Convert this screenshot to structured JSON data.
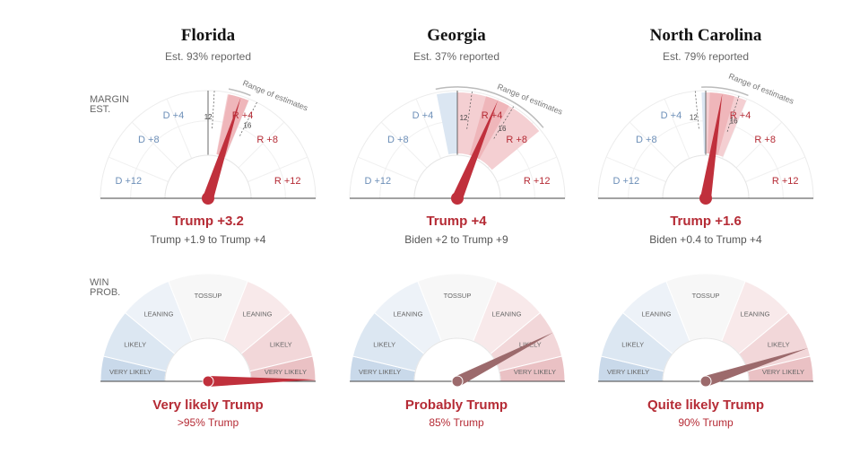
{
  "labels": {
    "margin_line1": "MARGIN",
    "margin_line2": "EST.",
    "win_line1": "WIN",
    "win_line2": "PROB."
  },
  "colors": {
    "red": "#b52b35",
    "blue": "#6d8fb8",
    "needle_red": "#c0303c",
    "needle_prob_gray": "#9c6a6c"
  },
  "states": [
    {
      "name": "Florida",
      "reported": "Est. 93% reported",
      "margin_headline": "Trump +3.2",
      "margin_range_text": "Trump +1.9 to Trump +4",
      "prob_headline": "Very likely Trump",
      "prob_text": ">95% Trump",
      "range_label": "Range of estimates",
      "tick_labels": {
        "t12": "12",
        "t16": "16"
      }
    },
    {
      "name": "Georgia",
      "reported": "Est. 37% reported",
      "margin_headline": "Trump +4",
      "margin_range_text": "Biden +2 to Trump +9",
      "prob_headline": "Probably Trump",
      "prob_text": "85% Trump",
      "range_label": "Range of estimates",
      "tick_labels": {
        "t12": "12",
        "t16": "16"
      }
    },
    {
      "name": "North Carolina",
      "reported": "Est. 79% reported",
      "margin_headline": "Trump +1.6",
      "margin_range_text": "Biden +0.4 to Trump +4",
      "prob_headline": "Quite likely Trump",
      "prob_text": "90% Trump",
      "range_label": "Range of estimates",
      "tick_labels": {
        "t12": "12",
        "t16": "16"
      }
    }
  ],
  "chart_data": [
    {
      "type": "gauge",
      "title": "Florida margin estimate",
      "scale": [
        -16,
        16
      ],
      "tick_labels": [
        "D +12",
        "D +8",
        "D +4",
        "R +4",
        "R +8",
        "R +12"
      ],
      "needle_value": 3.2,
      "range": [
        1.9,
        4
      ],
      "inner_ticks": [
        12,
        16
      ]
    },
    {
      "type": "gauge",
      "title": "Georgia margin estimate",
      "scale": [
        -16,
        16
      ],
      "tick_labels": [
        "D +12",
        "D +8",
        "D +4",
        "R +4",
        "R +8",
        "R +12"
      ],
      "needle_value": 4,
      "range": [
        -2,
        9
      ],
      "inner_ticks": [
        12,
        16
      ]
    },
    {
      "type": "gauge",
      "title": "North Carolina margin estimate",
      "scale": [
        -16,
        16
      ],
      "tick_labels": [
        "D +12",
        "D +8",
        "D +4",
        "R +4",
        "R +8",
        "R +12"
      ],
      "needle_value": 1.6,
      "range": [
        -0.4,
        4
      ],
      "inner_ticks": [
        12,
        16
      ]
    },
    {
      "type": "gauge",
      "title": "Florida win probability",
      "scale": [
        0,
        100
      ],
      "zones": [
        "VERY LIKELY",
        "LIKELY",
        "LEANING",
        "TOSSUP",
        "LEANING",
        "LIKELY",
        "VERY LIKELY"
      ],
      "needle_value": 99.5
    },
    {
      "type": "gauge",
      "title": "Georgia win probability",
      "scale": [
        0,
        100
      ],
      "zones": [
        "VERY LIKELY",
        "LIKELY",
        "LEANING",
        "TOSSUP",
        "LEANING",
        "LIKELY",
        "VERY LIKELY"
      ],
      "needle_value": 85
    },
    {
      "type": "gauge",
      "title": "North Carolina win probability",
      "scale": [
        0,
        100
      ],
      "zones": [
        "VERY LIKELY",
        "LIKELY",
        "LEANING",
        "TOSSUP",
        "LEANING",
        "LIKELY",
        "VERY LIKELY"
      ],
      "needle_value": 90
    }
  ]
}
